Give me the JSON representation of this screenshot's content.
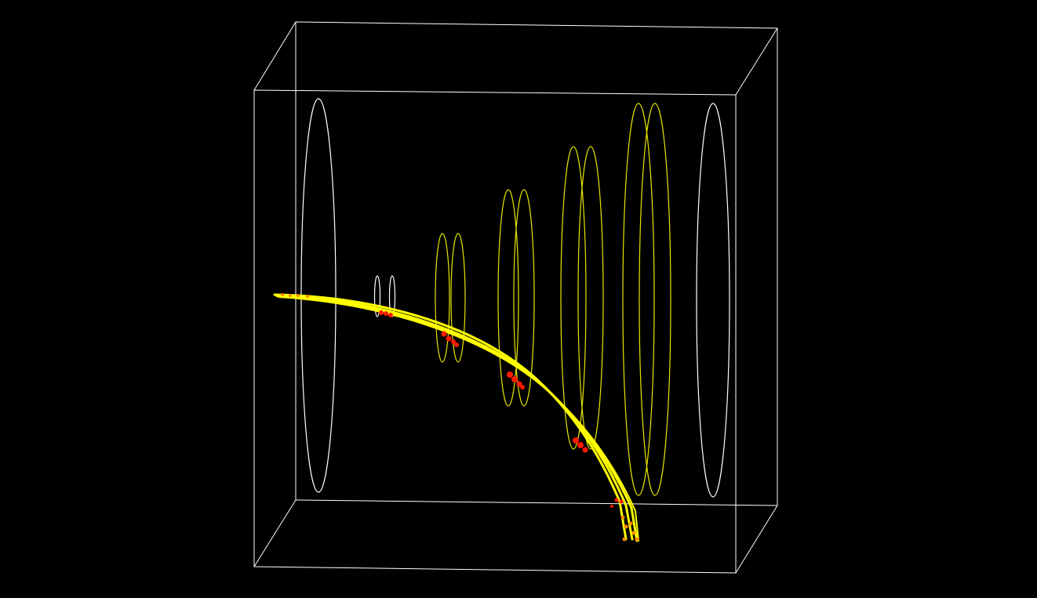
{
  "scene": {
    "background": "#000000",
    "colors": {
      "box": "#ffffff",
      "white_ring": "#ffffff",
      "yellow_ring": "#e6e600",
      "track": "#ffff00",
      "hit": "#ff1a00",
      "hit_orange": "#ff8c00"
    },
    "objects": {
      "bounding_box": "wireframe-box",
      "rings": "detector-rings",
      "tracks": "particle-tracks",
      "hits": "hit-markers"
    }
  }
}
